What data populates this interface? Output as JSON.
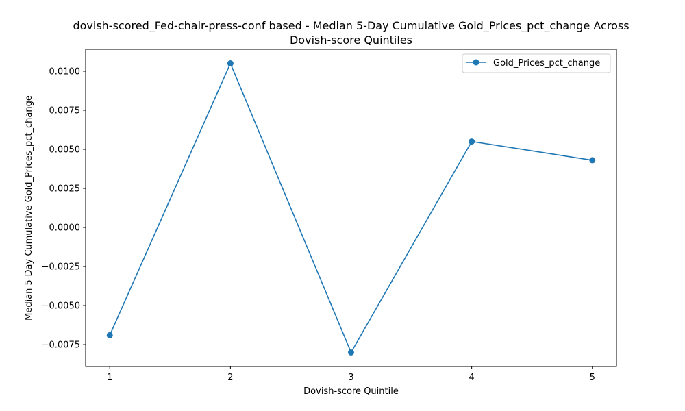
{
  "chart_data": {
    "type": "line",
    "title": "dovish-scored_Fed-chair-press-conf based - Median 5-Day Cumulative Gold_Prices_pct_change Across\nDovish-score Quintiles",
    "xlabel": "Dovish-score Quintile",
    "ylabel": "Median 5-Day Cumulative Gold_Prices_pct_change",
    "x": [
      1,
      2,
      3,
      4,
      5
    ],
    "x_ticks": [
      "1",
      "2",
      "3",
      "4",
      "5"
    ],
    "y_ticks": [
      "−0.0075",
      "−0.0050",
      "−0.0025",
      "0.0000",
      "0.0025",
      "0.0050",
      "0.0075",
      "0.0100"
    ],
    "y_tick_values": [
      -0.0075,
      -0.005,
      -0.0025,
      0,
      0.0025,
      0.005,
      0.0075,
      0.01
    ],
    "xlim": [
      0.8,
      5.2
    ],
    "ylim": [
      -0.0089,
      0.0114
    ],
    "series": [
      {
        "name": "Gold_Prices_pct_change",
        "color": "#1f77b4",
        "marker": "circle",
        "values": [
          -0.0069,
          0.0105,
          -0.008,
          0.0055,
          0.0043
        ]
      }
    ],
    "legend": {
      "placement": "top-right"
    },
    "grid": false
  }
}
